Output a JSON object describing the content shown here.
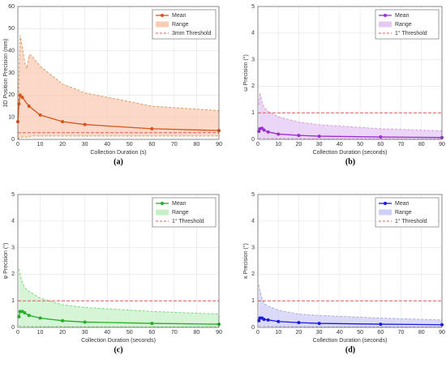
{
  "chart_data": [
    {
      "type": "line",
      "caption": "(a)",
      "xlabel": "Collection Duration (s)",
      "ylabel": "3D Position Precision (mm)",
      "xlim": [
        0,
        90
      ],
      "xticks": [
        0,
        10,
        20,
        30,
        40,
        50,
        60,
        70,
        80,
        90
      ],
      "ylim": [
        0,
        60
      ],
      "yticks": [
        0,
        10,
        20,
        30,
        40,
        50,
        60
      ],
      "grid": true,
      "legend": "upper right",
      "series": [
        {
          "name": "Mean",
          "color": "#d95319",
          "x": [
            0,
            0.5,
            1,
            2,
            5,
            10,
            20,
            30,
            60,
            90
          ],
          "values": [
            8,
            16,
            20,
            19,
            15,
            11,
            8,
            6.7,
            4.8,
            4
          ]
        },
        {
          "name": "Range",
          "color": "#f9cbb4",
          "x": [
            0,
            1,
            2,
            3,
            4,
            5,
            6,
            10,
            20,
            30,
            60,
            90
          ],
          "values": [
            10,
            47,
            42,
            35,
            32,
            38,
            38,
            33,
            25,
            21,
            15,
            13
          ],
          "lower": [
            0,
            1,
            1,
            1,
            1,
            1,
            1.5,
            1.5,
            1.5,
            1.5,
            1.5,
            1.5
          ]
        },
        {
          "name": "3mm Threshold",
          "color": "#e05a5a",
          "x": [
            0,
            90
          ],
          "values": [
            3,
            3
          ]
        }
      ]
    },
    {
      "type": "line",
      "caption": "(b)",
      "xlabel": "Collection Duration (seconds)",
      "ylabel": "ω Precision (°)",
      "xlim": [
        0,
        90
      ],
      "xticks": [
        0,
        10,
        20,
        30,
        40,
        50,
        60,
        70,
        80,
        90
      ],
      "ylim": [
        0,
        5
      ],
      "yticks": [
        0,
        1,
        2,
        3,
        4,
        5
      ],
      "grid": true,
      "legend": "upper right",
      "series": [
        {
          "name": "Mean",
          "color": "#9b30d0",
          "x": [
            0.5,
            1,
            2,
            3,
            5,
            10,
            20,
            30,
            60,
            90
          ],
          "values": [
            0.3,
            0.4,
            0.42,
            0.35,
            0.28,
            0.2,
            0.15,
            0.12,
            0.09,
            0.07
          ]
        },
        {
          "name": "Range",
          "color": "#e6c8f5",
          "x": [
            0.5,
            1,
            2,
            3,
            5,
            10,
            20,
            30,
            60,
            90
          ],
          "values": [
            1.3,
            1.75,
            1.4,
            1.2,
            1.05,
            0.85,
            0.65,
            0.55,
            0.4,
            0.32
          ],
          "lower": [
            0.05,
            0.05,
            0.05,
            0.04,
            0.04,
            0.03,
            0.03,
            0.02,
            0.02,
            0.02
          ]
        },
        {
          "name": "1° Threshold",
          "color": "#e05a5a",
          "x": [
            0,
            90
          ],
          "values": [
            1,
            1
          ]
        }
      ]
    },
    {
      "type": "line",
      "caption": "(c)",
      "xlabel": "Collection Duration (seconds)",
      "ylabel": "φ Precision (°)",
      "xlim": [
        0,
        90
      ],
      "xticks": [
        0,
        10,
        20,
        30,
        40,
        50,
        60,
        70,
        80,
        90
      ],
      "ylim": [
        0,
        5
      ],
      "yticks": [
        0,
        1,
        2,
        3,
        4,
        5
      ],
      "grid": true,
      "legend": "upper right",
      "series": [
        {
          "name": "Mean",
          "color": "#22b022",
          "x": [
            0.5,
            1,
            2,
            3,
            5,
            10,
            20,
            30,
            60,
            90
          ],
          "values": [
            0.4,
            0.6,
            0.6,
            0.55,
            0.45,
            0.35,
            0.25,
            0.2,
            0.15,
            0.12
          ]
        },
        {
          "name": "Range",
          "color": "#c8f0c8",
          "x": [
            0.5,
            1,
            2,
            3,
            5,
            10,
            20,
            30,
            60,
            90
          ],
          "values": [
            2.2,
            2.0,
            1.7,
            1.5,
            1.35,
            1.1,
            0.85,
            0.75,
            0.6,
            0.5
          ],
          "lower": [
            0.05,
            0.05,
            0.05,
            0.04,
            0.04,
            0.03,
            0.03,
            0.02,
            0.02,
            0.02
          ]
        },
        {
          "name": "1° Threshold",
          "color": "#e05a5a",
          "x": [
            0,
            90
          ],
          "values": [
            1,
            1
          ]
        }
      ]
    },
    {
      "type": "line",
      "caption": "(d)",
      "xlabel": "Collection Duration (seconds)",
      "ylabel": "κ Precision (°)",
      "xlim": [
        0,
        90
      ],
      "xticks": [
        0,
        10,
        20,
        30,
        40,
        50,
        60,
        70,
        80,
        90
      ],
      "ylim": [
        0,
        5
      ],
      "yticks": [
        0,
        1,
        2,
        3,
        4,
        5
      ],
      "grid": true,
      "legend": "upper right",
      "series": [
        {
          "name": "Mean",
          "color": "#1a1ae0",
          "x": [
            0.5,
            1,
            2,
            3,
            5,
            10,
            20,
            30,
            60,
            90
          ],
          "values": [
            0.25,
            0.35,
            0.35,
            0.3,
            0.28,
            0.22,
            0.18,
            0.15,
            0.12,
            0.1
          ]
        },
        {
          "name": "Range",
          "color": "#cfcff7",
          "x": [
            0.5,
            1,
            2,
            3,
            5,
            10,
            20,
            30,
            60,
            90
          ],
          "values": [
            1.6,
            1.4,
            1.1,
            0.9,
            0.8,
            0.65,
            0.5,
            0.45,
            0.35,
            0.28
          ],
          "lower": [
            0.05,
            0.05,
            0.05,
            0.04,
            0.04,
            0.03,
            0.03,
            0.02,
            0.02,
            0.02
          ]
        },
        {
          "name": "1° Threshold",
          "color": "#e05a5a",
          "x": [
            0,
            90
          ],
          "values": [
            1,
            1
          ]
        }
      ]
    }
  ]
}
